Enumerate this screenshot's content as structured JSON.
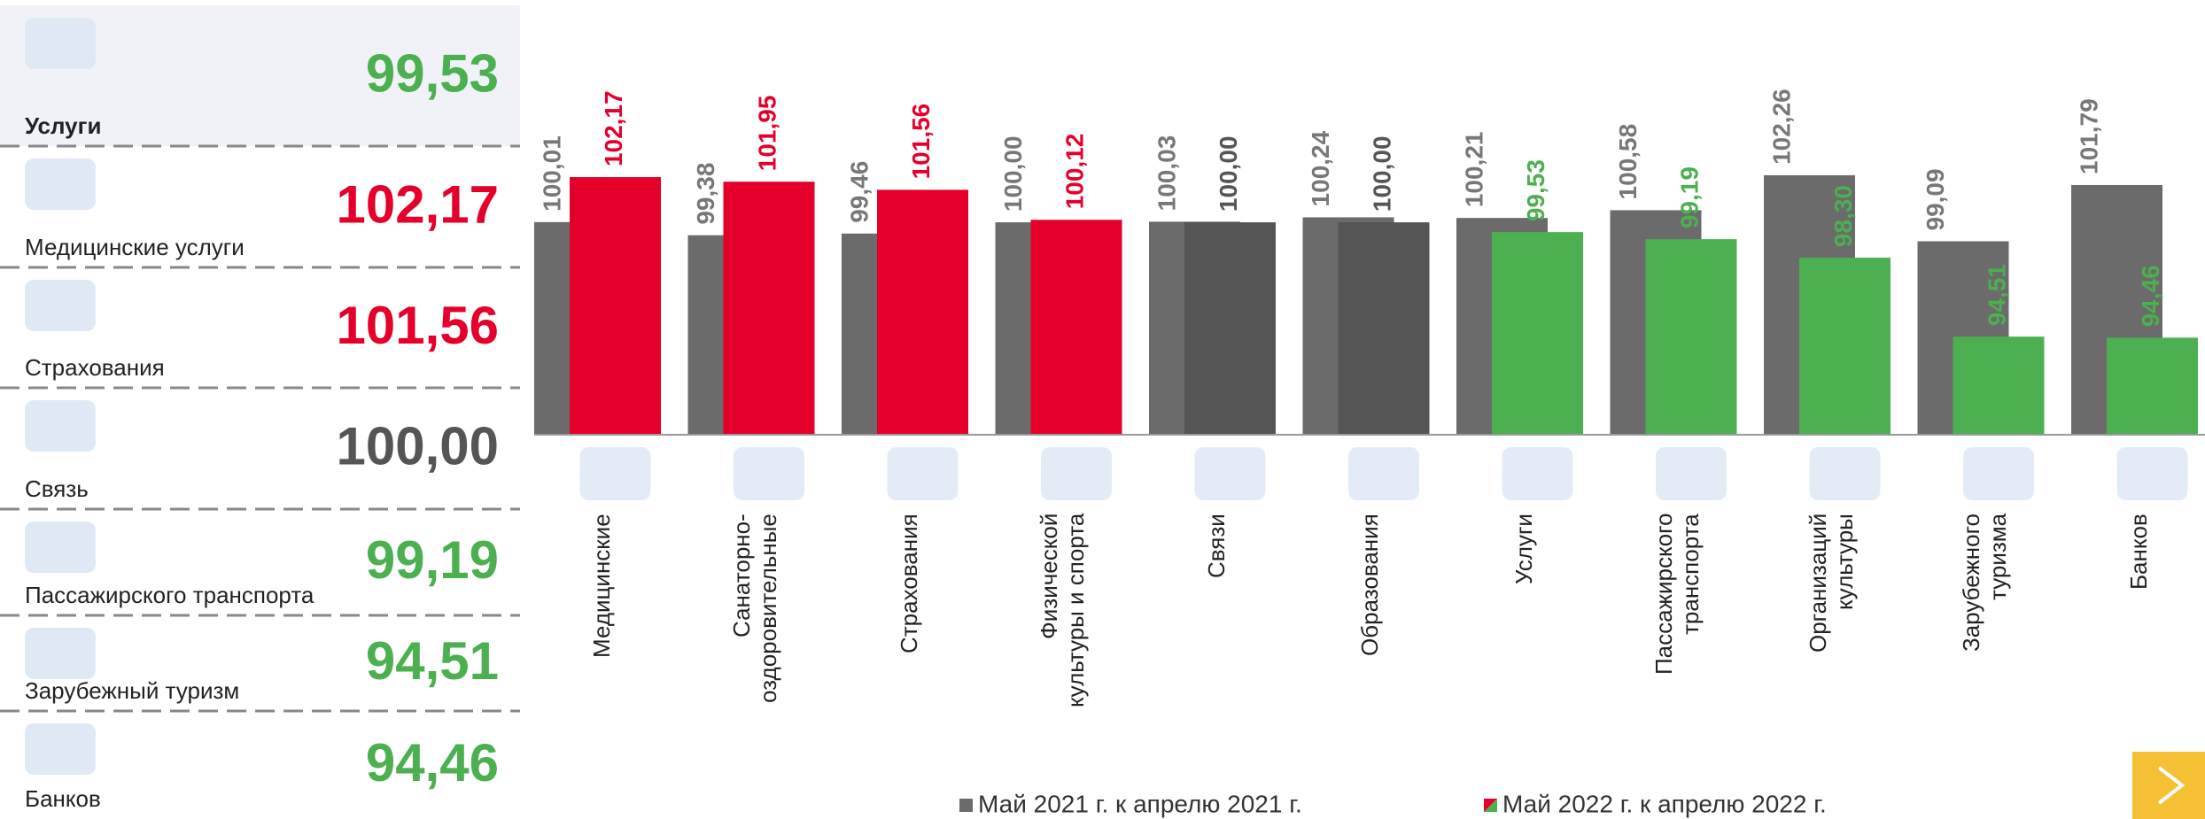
{
  "panel": {
    "items": [
      {
        "label": "Услуги",
        "value": "99,53",
        "color": "#4caf50"
      },
      {
        "label": "Медицинские услуги",
        "value": "102,17",
        "color": "#e4002b"
      },
      {
        "label": "Страхования",
        "value": "101,56",
        "color": "#e4002b"
      },
      {
        "label": "Связь",
        "value": "100,00",
        "color": "#555555"
      },
      {
        "label": "Пассажирского транспорта",
        "value": "99,19",
        "color": "#4caf50"
      },
      {
        "label": "Зарубежный туризм",
        "value": "94,51",
        "color": "#4caf50"
      },
      {
        "label": "Банков",
        "value": "94,46",
        "color": "#4caf50"
      }
    ]
  },
  "chart_data": {
    "type": "bar",
    "categories": [
      "Медицинские",
      "Санаторно-\nоздоровительные",
      "Страхования",
      "Физической\nкультуры и спорта",
      "Связи",
      "Образования",
      "Услуги",
      "Пассажирского\nтранспорта",
      "Организаций\nкультуры",
      "Зарубежного\nтуризма",
      "Банков"
    ],
    "series": [
      {
        "name": "Май 2021 г. к апрелю 2021 г.",
        "color": "#6b6b6b",
        "label_color": "#777777",
        "values": [
          100.01,
          99.38,
          99.46,
          100.0,
          100.03,
          100.24,
          100.21,
          100.58,
          102.26,
          99.09,
          101.79
        ],
        "value_labels": [
          "100,01",
          "99,38",
          "99,46",
          "100,00",
          "100,03",
          "100,24",
          "100,21",
          "100,58",
          "102,26",
          "99,09",
          "101,79"
        ]
      },
      {
        "name": "Май 2022 г. к апрелю 2022 г.",
        "colors": [
          "#e4002b",
          "#e4002b",
          "#e4002b",
          "#e4002b",
          "#555555",
          "#555555",
          "#4caf50",
          "#4caf50",
          "#4caf50",
          "#4caf50",
          "#4caf50"
        ],
        "values": [
          102.17,
          101.95,
          101.56,
          100.12,
          100.0,
          100.0,
          99.53,
          99.19,
          98.3,
          94.51,
          94.46
        ],
        "value_labels": [
          "102,17",
          "101,95",
          "101,56",
          "100,12",
          "100,00",
          "100,00",
          "99,53",
          "99,19",
          "98,30",
          "94,51",
          "94,46"
        ]
      }
    ],
    "ylim": [
      89.8,
      104
    ]
  }
}
